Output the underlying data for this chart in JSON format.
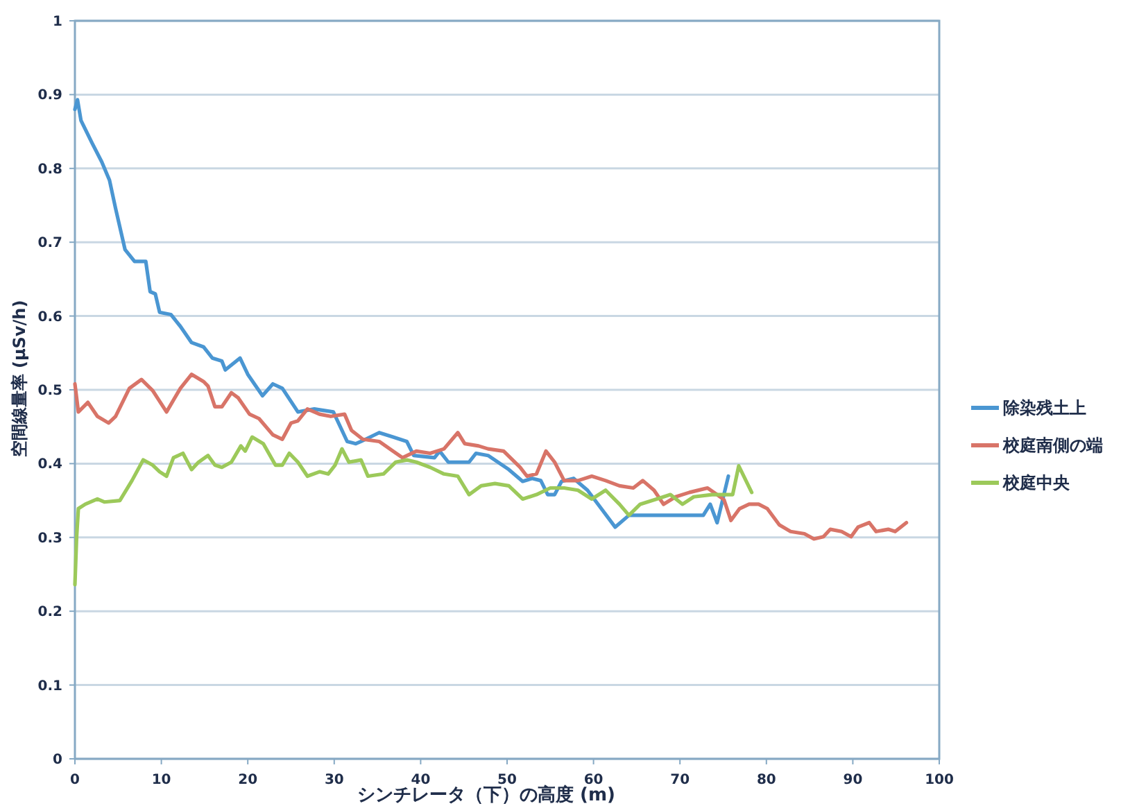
{
  "chart_data": {
    "type": "line",
    "xlabel": "シンチレータ（下）の高度 (m)",
    "ylabel": "空間線量率 (μSv/h)",
    "xlim": [
      0,
      100
    ],
    "xticks": [
      0,
      10,
      20,
      30,
      40,
      50,
      60,
      70,
      80,
      90,
      100
    ],
    "ylim": [
      0,
      1
    ],
    "yticks": [
      0,
      0.1,
      0.2,
      0.3,
      0.4,
      0.5,
      0.6,
      0.7,
      0.8,
      0.9,
      1
    ],
    "grid": "y",
    "legend": "right",
    "marker": "none",
    "line_style": "solid",
    "series": [
      {
        "name": "除染残土上",
        "color": "#4a96d2",
        "x": [
          0,
          0.3,
          0.7,
          2.0,
          3.1,
          4.0,
          4.7,
          5.8,
          6.9,
          8.2,
          8.7,
          9.3,
          9.8,
          11.1,
          12.2,
          13.5,
          14.9,
          15.9,
          17.0,
          17.4,
          19.1,
          20.0,
          21.7,
          22.9,
          24.0,
          25.8,
          27.7,
          29.9,
          31.5,
          32.5,
          33.1,
          35.2,
          36.8,
          38.4,
          39.2,
          41.6,
          42.2,
          43.2,
          45.6,
          46.4,
          47.8,
          50.2,
          51.8,
          52.9,
          53.9,
          54.7,
          55.5,
          56.3,
          57.7,
          59.3,
          60.9,
          62.5,
          64.1,
          66.2,
          72.7,
          73.5,
          74.3,
          75.6
        ],
        "values": [
          0.88,
          0.893,
          0.865,
          0.834,
          0.809,
          0.784,
          0.746,
          0.69,
          0.674,
          0.674,
          0.633,
          0.63,
          0.605,
          0.602,
          0.586,
          0.564,
          0.558,
          0.543,
          0.539,
          0.527,
          0.543,
          0.521,
          0.492,
          0.508,
          0.502,
          0.47,
          0.474,
          0.47,
          0.43,
          0.427,
          0.43,
          0.442,
          0.436,
          0.43,
          0.411,
          0.408,
          0.417,
          0.402,
          0.402,
          0.414,
          0.411,
          0.392,
          0.376,
          0.38,
          0.377,
          0.358,
          0.358,
          0.376,
          0.38,
          0.364,
          0.339,
          0.314,
          0.33,
          0.33,
          0.33,
          0.345,
          0.32,
          0.383
        ]
      },
      {
        "name": "校庭南側の端",
        "color": "#d87468",
        "x": [
          0,
          0.4,
          1.5,
          2.6,
          3.9,
          4.7,
          6.3,
          7.7,
          9.0,
          10.6,
          12.2,
          13.5,
          14.9,
          15.4,
          16.2,
          17.0,
          18.1,
          18.9,
          20.2,
          21.3,
          22.9,
          24.0,
          25.0,
          25.8,
          26.9,
          28.3,
          29.6,
          31.2,
          32.0,
          33.3,
          35.2,
          36.8,
          37.9,
          39.5,
          41.1,
          42.7,
          44.3,
          45.1,
          46.7,
          47.8,
          49.6,
          51.5,
          52.3,
          53.4,
          54.5,
          55.5,
          56.6,
          58.2,
          59.8,
          61.4,
          63.0,
          64.6,
          65.7,
          67.0,
          68.1,
          69.5,
          71.1,
          73.2,
          74.3,
          75.1,
          75.9,
          76.9,
          78.0,
          79.1,
          80.1,
          81.5,
          82.8,
          84.4,
          85.5,
          86.6,
          87.4,
          88.7,
          89.8,
          90.6,
          91.9,
          92.7,
          94.1,
          94.9,
          96.2
        ],
        "values": [
          0.508,
          0.47,
          0.483,
          0.464,
          0.455,
          0.464,
          0.502,
          0.514,
          0.499,
          0.47,
          0.502,
          0.521,
          0.511,
          0.505,
          0.477,
          0.477,
          0.496,
          0.489,
          0.467,
          0.461,
          0.439,
          0.433,
          0.455,
          0.458,
          0.474,
          0.467,
          0.464,
          0.467,
          0.445,
          0.433,
          0.43,
          0.417,
          0.408,
          0.417,
          0.414,
          0.42,
          0.442,
          0.427,
          0.424,
          0.42,
          0.417,
          0.395,
          0.383,
          0.386,
          0.417,
          0.402,
          0.377,
          0.377,
          0.383,
          0.377,
          0.37,
          0.367,
          0.377,
          0.364,
          0.345,
          0.355,
          0.361,
          0.367,
          0.358,
          0.351,
          0.323,
          0.339,
          0.345,
          0.345,
          0.339,
          0.317,
          0.308,
          0.305,
          0.298,
          0.301,
          0.311,
          0.308,
          0.301,
          0.314,
          0.32,
          0.308,
          0.311,
          0.308,
          0.32
        ]
      },
      {
        "name": "校庭中央",
        "color": "#9cc95a",
        "x": [
          0,
          0.2,
          0.4,
          1.2,
          2.6,
          3.4,
          5.2,
          6.6,
          7.9,
          9.0,
          9.8,
          10.6,
          11.4,
          12.5,
          13.5,
          14.3,
          15.4,
          16.2,
          17.0,
          18.1,
          19.2,
          19.7,
          20.5,
          21.8,
          23.2,
          24.0,
          24.8,
          25.8,
          26.9,
          28.3,
          29.3,
          30.1,
          30.9,
          31.7,
          33.1,
          33.9,
          35.7,
          37.1,
          38.4,
          39.5,
          41.1,
          42.7,
          44.3,
          45.6,
          47.0,
          48.6,
          50.2,
          51.8,
          53.4,
          55.0,
          56.6,
          58.2,
          59.8,
          61.4,
          63.0,
          64.1,
          65.4,
          67.3,
          68.9,
          70.3,
          71.6,
          73.7,
          76.1,
          76.8,
          78.3
        ],
        "values": [
          0.236,
          0.301,
          0.339,
          0.345,
          0.352,
          0.348,
          0.35,
          0.377,
          0.405,
          0.398,
          0.389,
          0.383,
          0.408,
          0.414,
          0.392,
          0.402,
          0.411,
          0.398,
          0.395,
          0.402,
          0.424,
          0.417,
          0.436,
          0.427,
          0.398,
          0.398,
          0.414,
          0.402,
          0.383,
          0.389,
          0.386,
          0.398,
          0.42,
          0.402,
          0.405,
          0.383,
          0.386,
          0.402,
          0.405,
          0.402,
          0.395,
          0.386,
          0.383,
          0.358,
          0.37,
          0.373,
          0.37,
          0.352,
          0.358,
          0.367,
          0.367,
          0.364,
          0.352,
          0.364,
          0.345,
          0.33,
          0.345,
          0.352,
          0.358,
          0.345,
          0.355,
          0.358,
          0.358,
          0.397,
          0.361
        ]
      }
    ]
  }
}
